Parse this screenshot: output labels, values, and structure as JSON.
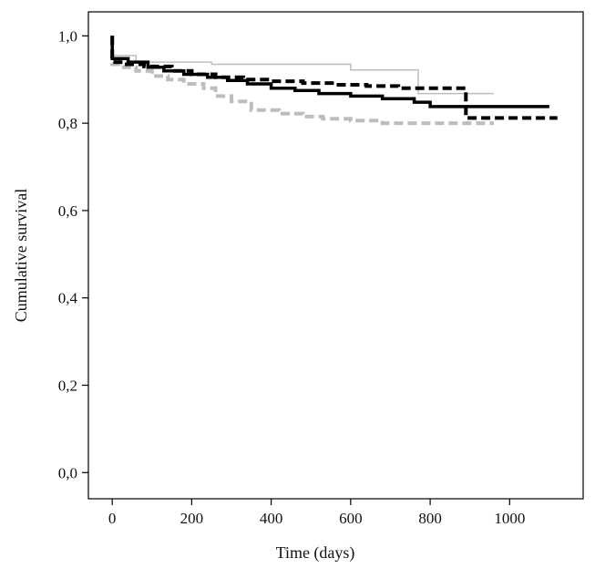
{
  "chart_data": {
    "type": "line",
    "title": "",
    "xlabel": "Time (days)",
    "ylabel": "Cumulative survival",
    "xlim": [
      -60,
      1185
    ],
    "ylim": [
      -0.06,
      1.055
    ],
    "x_ticks": [
      0,
      200,
      400,
      600,
      800,
      1000
    ],
    "x_tick_labels": [
      "0",
      "200",
      "400",
      "600",
      "800",
      "1000"
    ],
    "y_ticks": [
      0,
      0.2,
      0.4,
      0.6,
      0.8,
      1.0
    ],
    "y_tick_labels": [
      "0,0",
      "0,2",
      "0,4",
      "0,6",
      "0,8",
      "1,0"
    ],
    "grid": false,
    "legend": "none",
    "series": [
      {
        "color": "#bdbdbd",
        "line_style": "solid-thin",
        "points": [
          [
            0,
            1.0
          ],
          [
            0,
            0.955
          ],
          [
            60,
            0.955
          ],
          [
            60,
            0.94
          ],
          [
            250,
            0.94
          ],
          [
            250,
            0.935
          ],
          [
            600,
            0.935
          ],
          [
            600,
            0.922
          ],
          [
            770,
            0.922
          ],
          [
            770,
            0.868
          ],
          [
            960,
            0.868
          ]
        ]
      },
      {
        "color": "#bdbdbd",
        "line_style": "dashed-thick",
        "points": [
          [
            0,
            1.0
          ],
          [
            0,
            0.935
          ],
          [
            20,
            0.935
          ],
          [
            20,
            0.928
          ],
          [
            60,
            0.928
          ],
          [
            60,
            0.92
          ],
          [
            100,
            0.92
          ],
          [
            100,
            0.908
          ],
          [
            140,
            0.908
          ],
          [
            140,
            0.9
          ],
          [
            180,
            0.9
          ],
          [
            180,
            0.89
          ],
          [
            230,
            0.89
          ],
          [
            230,
            0.88
          ],
          [
            260,
            0.88
          ],
          [
            260,
            0.862
          ],
          [
            300,
            0.862
          ],
          [
            300,
            0.85
          ],
          [
            350,
            0.85
          ],
          [
            350,
            0.83
          ],
          [
            420,
            0.83
          ],
          [
            420,
            0.822
          ],
          [
            480,
            0.822
          ],
          [
            480,
            0.815
          ],
          [
            530,
            0.815
          ],
          [
            530,
            0.81
          ],
          [
            600,
            0.81
          ],
          [
            600,
            0.806
          ],
          [
            680,
            0.806
          ],
          [
            680,
            0.8
          ],
          [
            960,
            0.8
          ]
        ]
      },
      {
        "color": "#000000",
        "line_style": "solid-thick",
        "points": [
          [
            0,
            1.0
          ],
          [
            0,
            0.948
          ],
          [
            40,
            0.948
          ],
          [
            40,
            0.94
          ],
          [
            90,
            0.94
          ],
          [
            90,
            0.928
          ],
          [
            130,
            0.928
          ],
          [
            130,
            0.92
          ],
          [
            180,
            0.92
          ],
          [
            180,
            0.912
          ],
          [
            240,
            0.912
          ],
          [
            240,
            0.905
          ],
          [
            290,
            0.905
          ],
          [
            290,
            0.898
          ],
          [
            340,
            0.898
          ],
          [
            340,
            0.89
          ],
          [
            400,
            0.89
          ],
          [
            400,
            0.88
          ],
          [
            460,
            0.88
          ],
          [
            460,
            0.875
          ],
          [
            520,
            0.875
          ],
          [
            520,
            0.868
          ],
          [
            600,
            0.868
          ],
          [
            600,
            0.862
          ],
          [
            680,
            0.862
          ],
          [
            680,
            0.856
          ],
          [
            760,
            0.856
          ],
          [
            760,
            0.848
          ],
          [
            800,
            0.848
          ],
          [
            800,
            0.838
          ],
          [
            1100,
            0.838
          ]
        ]
      },
      {
        "color": "#000000",
        "line_style": "dashed-thick",
        "points": [
          [
            0,
            1.0
          ],
          [
            0,
            0.94
          ],
          [
            30,
            0.94
          ],
          [
            30,
            0.935
          ],
          [
            80,
            0.935
          ],
          [
            80,
            0.93
          ],
          [
            150,
            0.93
          ],
          [
            150,
            0.92
          ],
          [
            200,
            0.92
          ],
          [
            200,
            0.912
          ],
          [
            260,
            0.912
          ],
          [
            260,
            0.905
          ],
          [
            330,
            0.905
          ],
          [
            330,
            0.9
          ],
          [
            400,
            0.9
          ],
          [
            400,
            0.896
          ],
          [
            480,
            0.896
          ],
          [
            480,
            0.892
          ],
          [
            560,
            0.892
          ],
          [
            560,
            0.888
          ],
          [
            640,
            0.888
          ],
          [
            640,
            0.885
          ],
          [
            720,
            0.885
          ],
          [
            720,
            0.88
          ],
          [
            890,
            0.88
          ],
          [
            890,
            0.812
          ],
          [
            1120,
            0.812
          ]
        ]
      }
    ]
  }
}
